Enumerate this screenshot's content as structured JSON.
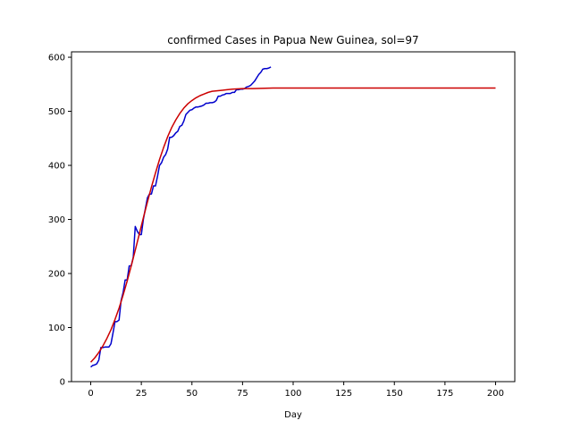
{
  "chart_data": {
    "type": "line",
    "title": "confirmed Cases in Papua New Guinea, sol=97",
    "xlabel": "Day",
    "ylabel": "",
    "xlim": [
      -9.5,
      209.5
    ],
    "ylim": [
      0,
      610
    ],
    "xticks": [
      0,
      25,
      50,
      75,
      100,
      125,
      150,
      175,
      200
    ],
    "yticks": [
      0,
      100,
      200,
      300,
      400,
      500,
      600
    ],
    "grid": false,
    "legend": "none",
    "series": [
      {
        "color": "#0000cc",
        "x": [
          0,
          1,
          2,
          3,
          4,
          5,
          6,
          7,
          8,
          9,
          10,
          11,
          12,
          13,
          14,
          15,
          16,
          17,
          18,
          19,
          20,
          21,
          22,
          23,
          24,
          25,
          26,
          27,
          28,
          29,
          30,
          31,
          32,
          33,
          34,
          35,
          36,
          37,
          38,
          39,
          40,
          41,
          42,
          43,
          44,
          45,
          46,
          47,
          48,
          49,
          50,
          51,
          52,
          53,
          54,
          55,
          56,
          57,
          58,
          59,
          60,
          61,
          62,
          63,
          64,
          65,
          66,
          67,
          68,
          69,
          70,
          71,
          72,
          73,
          74,
          75,
          76,
          77,
          78,
          79,
          80,
          81,
          82,
          83,
          84,
          85,
          86,
          87,
          88,
          89
        ],
        "values": [
          27,
          30,
          31,
          33,
          40,
          63,
          63,
          64,
          64,
          64,
          70,
          90,
          111,
          111,
          114,
          150,
          165,
          188,
          188,
          214,
          214,
          230,
          287,
          278,
          272,
          272,
          300,
          320,
          340,
          347,
          347,
          362,
          362,
          380,
          400,
          405,
          415,
          420,
          430,
          452,
          452,
          455,
          460,
          463,
          472,
          474,
          482,
          494,
          498,
          502,
          503,
          506,
          508,
          508,
          509,
          510,
          512,
          515,
          515,
          516,
          516,
          517,
          520,
          528,
          528,
          530,
          531,
          533,
          533,
          533,
          535,
          535,
          540,
          540,
          541,
          541,
          542,
          545,
          546,
          548,
          552,
          556,
          562,
          568,
          572,
          578,
          579,
          579,
          580,
          582
        ]
      },
      {
        "color": "#cc0000",
        "x": [
          0,
          2,
          4,
          6,
          8,
          10,
          12,
          14,
          16,
          18,
          20,
          22,
          24,
          26,
          28,
          30,
          32,
          34,
          36,
          38,
          40,
          42,
          44,
          46,
          48,
          50,
          52,
          54,
          56,
          58,
          60,
          65,
          70,
          75,
          80,
          90,
          100,
          120,
          140,
          160,
          180,
          200
        ],
        "values": [
          36,
          44,
          54,
          66,
          80,
          96,
          115,
          136,
          160,
          186,
          214,
          243,
          273,
          303,
          332,
          360,
          386,
          411,
          433,
          453,
          470,
          484,
          496,
          506,
          514,
          520,
          525,
          529,
          532,
          535,
          537,
          539,
          541,
          542,
          542,
          543,
          543,
          543,
          543,
          543,
          543,
          543
        ]
      }
    ]
  }
}
